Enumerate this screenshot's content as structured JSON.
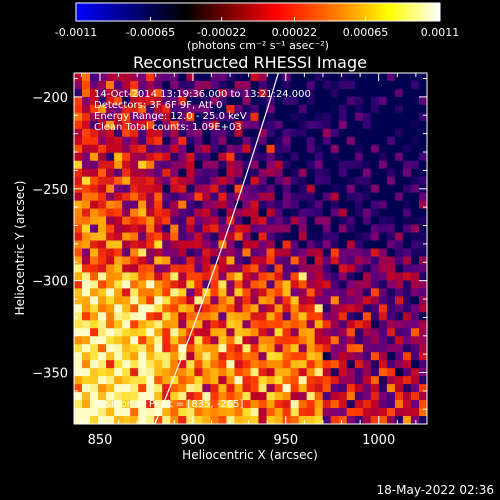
{
  "chart_data": {
    "type": "heatmap",
    "title": "Reconstructed RHESSI Image",
    "xlabel": "Heliocentric X (arcsec)",
    "ylabel": "Heliocentric Y (arcsec)",
    "xlim": [
      836,
      1026
    ],
    "ylim": [
      -378,
      -187
    ],
    "x_ticks": [
      850,
      900,
      950,
      1000
    ],
    "y_ticks": [
      -200,
      -250,
      -300,
      -350
    ],
    "colorbar": {
      "ticks": [
        "-0.0011",
        "-0.00065",
        "-0.00022",
        "0.00022",
        "0.00065",
        "0.0011"
      ],
      "tick_values": [
        -0.0011,
        -0.00065,
        -0.00022,
        0.00022,
        0.00065,
        0.0011
      ],
      "range": [
        -0.0011,
        0.0011
      ],
      "unit_label": "(photons cm⁻² s⁻¹ asec⁻²)",
      "colors": [
        "#0000ff",
        "#000000",
        "#ff0000",
        "#ff8000",
        "#ffff00",
        "#ffffff"
      ]
    },
    "annotations": [
      "14-Oct-2014 13:19:36.000 to 13:21:24.000",
      "Detectors: 3F 6F 9F, Att 0",
      "Energy Range: 12.0 - 25.0 keV",
      "Clean    Total counts: 1.09E+03",
      "Position of Peak = [835, -265]"
    ],
    "grid": false,
    "limb_curve": true
  },
  "footer_timestamp": "18-May-2022 02:36"
}
